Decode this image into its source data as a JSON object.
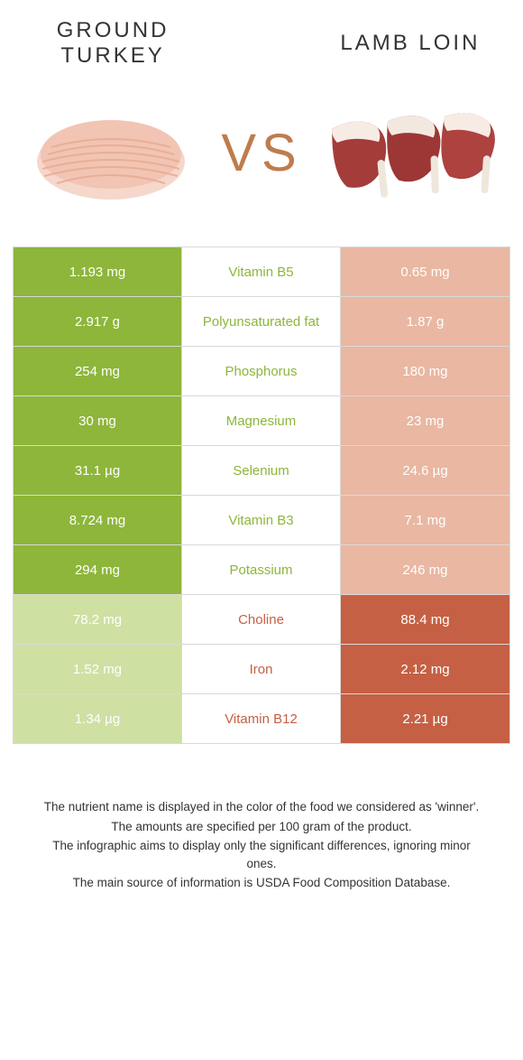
{
  "header": {
    "left_title": "GROUND TURKEY",
    "right_title": "LAMB LOIN",
    "vs_label": "VS"
  },
  "colors": {
    "left_win": "#8db63a",
    "left_lose": "#cfe0a3",
    "right_win": "#c56044",
    "right_lose": "#e9b7a2",
    "mid_left_text": "#8db63a",
    "mid_right_text": "#c56044",
    "cell_text": "#ffffff",
    "border": "#d9d9d9"
  },
  "rows": [
    {
      "nutrient": "Vitamin B5",
      "left": "1.193 mg",
      "right": "0.65 mg",
      "winner": "left"
    },
    {
      "nutrient": "Polyunsaturated fat",
      "left": "2.917 g",
      "right": "1.87 g",
      "winner": "left"
    },
    {
      "nutrient": "Phosphorus",
      "left": "254 mg",
      "right": "180 mg",
      "winner": "left"
    },
    {
      "nutrient": "Magnesium",
      "left": "30 mg",
      "right": "23 mg",
      "winner": "left"
    },
    {
      "nutrient": "Selenium",
      "left": "31.1 µg",
      "right": "24.6 µg",
      "winner": "left"
    },
    {
      "nutrient": "Vitamin B3",
      "left": "8.724 mg",
      "right": "7.1 mg",
      "winner": "left"
    },
    {
      "nutrient": "Potassium",
      "left": "294 mg",
      "right": "246 mg",
      "winner": "left"
    },
    {
      "nutrient": "Choline",
      "left": "78.2 mg",
      "right": "88.4 mg",
      "winner": "right"
    },
    {
      "nutrient": "Iron",
      "left": "1.52 mg",
      "right": "2.12 mg",
      "winner": "right"
    },
    {
      "nutrient": "Vitamin B12",
      "left": "1.34 µg",
      "right": "2.21 µg",
      "winner": "right"
    }
  ],
  "footnotes": [
    "The nutrient name is displayed in the color of the food we considered as 'winner'.",
    "The amounts are specified per 100 gram of the product.",
    "The infographic aims to display only the significant differences, ignoring minor ones.",
    "The main source of information is USDA Food Composition Database."
  ]
}
